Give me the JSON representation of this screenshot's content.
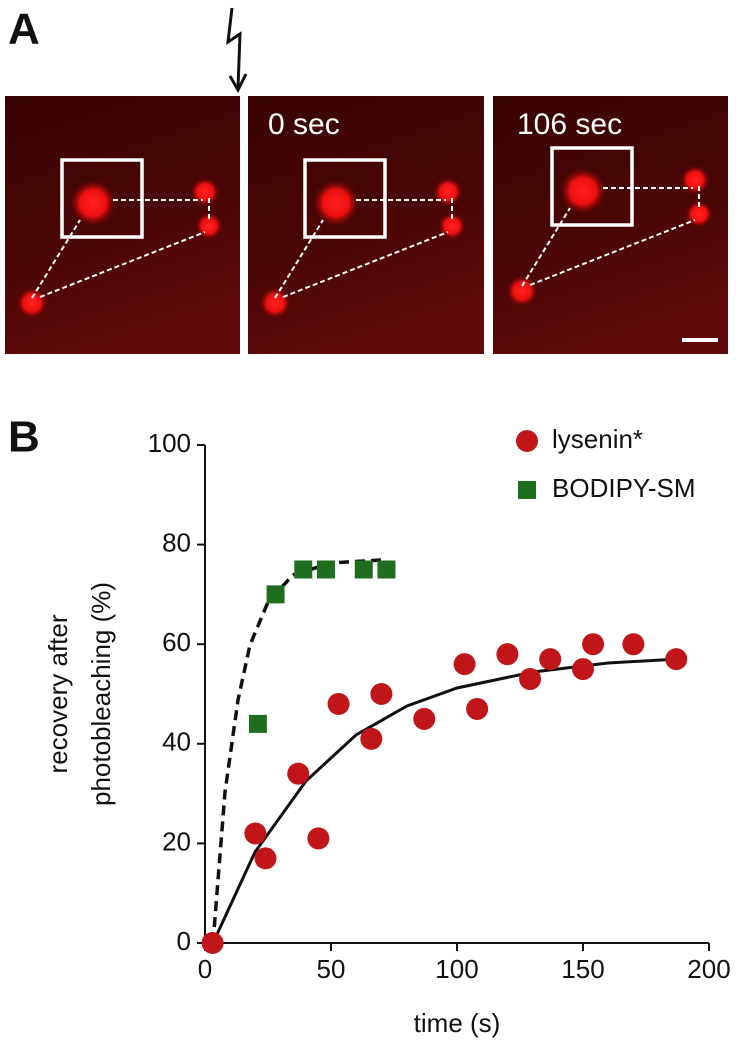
{
  "panel_labels": {
    "a": "A",
    "b": "B"
  },
  "images": {
    "labels": [
      "0 sec",
      "106 sec"
    ]
  },
  "chart_data": {
    "type": "scatter",
    "xlabel": "time (s)",
    "ylabel": [
      "recovery after",
      "photobleaching (%)"
    ],
    "xlim": [
      0,
      200
    ],
    "ylim": [
      0,
      100
    ],
    "xticks": [
      0,
      50,
      100,
      150,
      200
    ],
    "yticks": [
      0,
      20,
      40,
      60,
      80,
      100
    ],
    "legend": "upper right",
    "series": [
      {
        "name": "lysenin*",
        "color": "#c0161a",
        "marker": "circle",
        "x": [
          3,
          20,
          24,
          37,
          45,
          53,
          66,
          70,
          87,
          103,
          108,
          120,
          129,
          137,
          150,
          154,
          170,
          187
        ],
        "values": [
          0,
          22,
          17,
          34,
          21,
          48,
          41,
          50,
          45,
          56,
          47,
          58,
          53,
          57,
          55,
          60,
          60,
          57
        ]
      },
      {
        "name": "BODIPY-SM",
        "color": "#1f6e1f",
        "marker": "square",
        "x": [
          21,
          28,
          39,
          48,
          63,
          72
        ],
        "values": [
          44,
          70,
          75,
          75,
          75,
          75
        ]
      }
    ]
  }
}
